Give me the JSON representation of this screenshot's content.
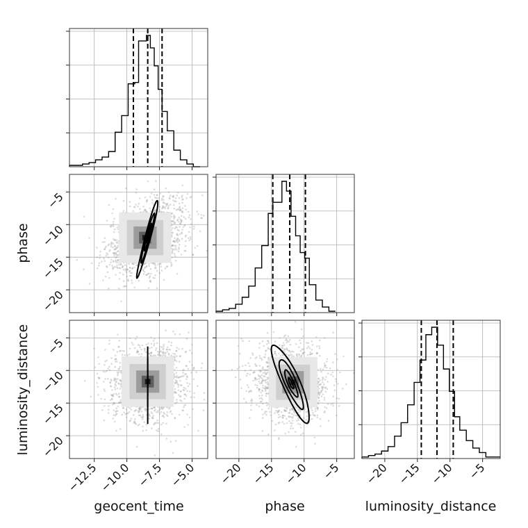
{
  "chart_data": {
    "type": "corner",
    "parameters": [
      "geocent_time",
      "phase",
      "luminosity_distance"
    ],
    "axis_labels": {
      "x": [
        "geocent_time",
        "phase",
        "luminosity_distance"
      ],
      "y_row1": "phase",
      "y_row2": "luminosity_distance"
    },
    "ranges": {
      "geocent_time": [
        -14.4,
        -3.8
      ],
      "phase": [
        -23.5,
        -2.3
      ],
      "luminosity_distance": [
        -23.5,
        -2.3
      ]
    },
    "ticks": {
      "geocent_time": [
        -12.5,
        -10.0,
        -7.5,
        -5.0
      ],
      "phase": [
        -20,
        -15,
        -10,
        -5
      ],
      "luminosity_distance": [
        -20,
        -15,
        -10,
        -5
      ]
    },
    "tick_labels": {
      "geocent_time": [
        "−12.5",
        "−10.0",
        "−7.5",
        "−5.0"
      ],
      "phase": [
        "−20",
        "−15",
        "−10",
        "−5"
      ],
      "luminosity_distance": [
        "−20",
        "−15",
        "−10",
        "−5"
      ]
    },
    "quantiles": {
      "geocent_time": [
        -9.5,
        -8.4,
        -7.3
      ],
      "phase": [
        -14.8,
        -12.2,
        -9.8
      ],
      "luminosity_distance": [
        -14.4,
        -12.0,
        -9.5
      ]
    },
    "marginals": {
      "geocent_time": {
        "bin_edges": [
          -14.4,
          -13.9,
          -13.4,
          -12.9,
          -12.4,
          -11.9,
          -11.4,
          -10.9,
          -10.4,
          -9.9,
          -9.4,
          -9.1,
          -8.8,
          -8.5,
          -8.2,
          -7.9,
          -7.6,
          -7.3,
          -6.9,
          -6.4,
          -5.9,
          -5.4,
          -4.9,
          -4.4
        ],
        "counts": [
          0.01,
          0.01,
          0.02,
          0.03,
          0.05,
          0.07,
          0.11,
          0.25,
          0.37,
          0.6,
          0.61,
          0.91,
          0.91,
          0.95,
          0.86,
          0.73,
          0.56,
          0.4,
          0.26,
          0.12,
          0.05,
          0.02,
          0.0
        ]
      },
      "phase": {
        "bin_edges": [
          -23.5,
          -22.5,
          -21.5,
          -20.5,
          -19.5,
          -18.5,
          -17.5,
          -16.5,
          -15.5,
          -14.8,
          -14.1,
          -13.4,
          -12.7,
          -12.0,
          -11.3,
          -10.6,
          -9.9,
          -9.2,
          -8.2,
          -7.2,
          -6.2,
          -5.2
        ],
        "counts": [
          0.01,
          0.02,
          0.03,
          0.06,
          0.11,
          0.19,
          0.32,
          0.48,
          0.71,
          0.79,
          0.79,
          0.94,
          0.87,
          0.69,
          0.55,
          0.43,
          0.39,
          0.2,
          0.09,
          0.04,
          0.01
        ]
      },
      "luminosity_distance": {
        "bin_edges": [
          -23.5,
          -22.5,
          -21.5,
          -20.5,
          -19.5,
          -18.5,
          -17.5,
          -16.5,
          -15.5,
          -14.6,
          -13.7,
          -12.8,
          -11.9,
          -11.0,
          -10.1,
          -9.3,
          -8.5,
          -7.5,
          -6.5,
          -5.5,
          -4.5,
          -3.5,
          -2.3
        ],
        "counts": [
          0.01,
          0.02,
          0.03,
          0.05,
          0.08,
          0.15,
          0.24,
          0.36,
          0.51,
          0.66,
          0.83,
          0.88,
          0.76,
          0.6,
          0.45,
          0.28,
          0.19,
          0.12,
          0.07,
          0.04,
          0.01,
          0.01
        ]
      }
    },
    "joint": [
      {
        "x": "geocent_time",
        "y": "phase",
        "mean": [
          -8.4,
          -12.0
        ],
        "sd": [
          1.55,
          3.0
        ],
        "rho": 0.42,
        "peak": [
          -8.6,
          -12.0
        ],
        "contour_fractions": [
          0.12,
          0.3,
          0.55,
          0.86
        ]
      },
      {
        "x": "geocent_time",
        "y": "luminosity_distance",
        "mean": [
          -8.4,
          -12.0
        ],
        "sd": [
          1.55,
          3.0
        ],
        "rho": 0.0,
        "peak": [
          -8.4,
          -11.7
        ],
        "contour_fractions": [
          0.12,
          0.3,
          0.55,
          0.86
        ]
      },
      {
        "x": "phase",
        "y": "luminosity_distance",
        "mean": [
          -12.0,
          -12.0
        ],
        "sd": [
          2.9,
          3.0
        ],
        "rho": -0.06,
        "peak": [
          -11.7,
          -11.8
        ],
        "contour_fractions": [
          0.12,
          0.3,
          0.55,
          0.86
        ]
      }
    ],
    "grid": true,
    "colors": {
      "points": "#9a9a9a",
      "lines": "#000000",
      "grid": "#b0b0b0"
    }
  }
}
